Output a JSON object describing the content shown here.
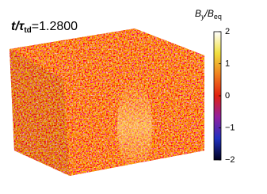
{
  "chart_data": {
    "type": "colorbar",
    "title": {
      "variable": "t/τ",
      "subscript": "td",
      "value_text": "=1.2800"
    },
    "colorbar_label": {
      "b1": "B",
      "s1": "y",
      "b2": "/B",
      "s2": "eq"
    },
    "ylim": [
      -2,
      2
    ],
    "yticks": [
      {
        "value": -2,
        "label": "−2"
      },
      {
        "value": -1,
        "label": "−1"
      },
      0,
      1,
      2
    ],
    "colormap": [
      "#000020",
      "#2030c0",
      "#9020a0",
      "#e02010",
      "#f08020",
      "#f0e040",
      "#ffffff"
    ]
  }
}
